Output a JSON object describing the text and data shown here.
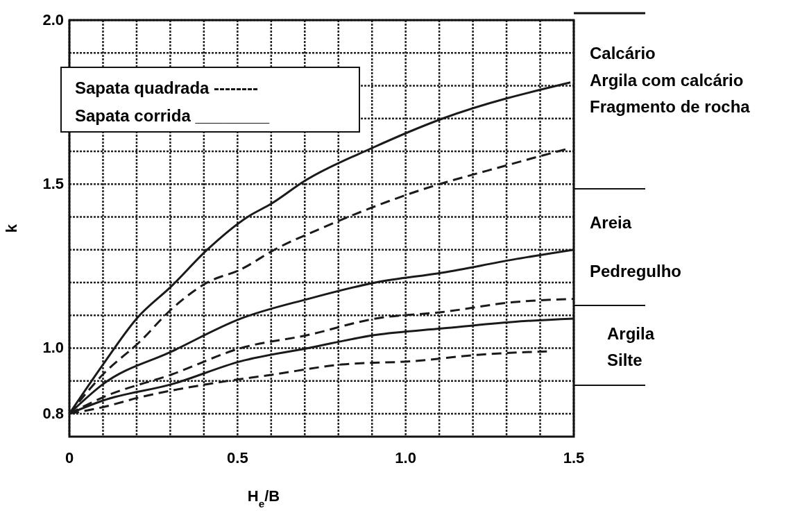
{
  "chart_data": {
    "type": "line",
    "xlabel": "H$_{e}$/B",
    "ylabel": "k",
    "xlim": [
      0,
      1.5
    ],
    "ylim": [
      0.73,
      2.0
    ],
    "xticks": [
      0,
      {
        "value": 0.1,
        "label": null
      },
      {
        "value": 0.2,
        "label": null
      },
      {
        "value": 0.3,
        "label": null
      },
      {
        "value": 0.4,
        "label": null
      },
      0.5,
      {
        "value": 0.6,
        "label": null
      },
      {
        "value": 0.7,
        "label": null
      },
      {
        "value": 0.8,
        "label": null
      },
      {
        "value": 0.9,
        "label": null
      },
      {
        "value": 1.0,
        "label": "1.0"
      },
      {
        "value": 1.1,
        "label": null
      },
      {
        "value": 1.2,
        "label": null
      },
      {
        "value": 1.3,
        "label": null
      },
      {
        "value": 1.4,
        "label": null
      },
      1.5
    ],
    "yticks": [
      0.8,
      {
        "value": 0.9,
        "label": null
      },
      {
        "value": 1.0,
        "label": "1.0"
      },
      {
        "value": 1.1,
        "label": null
      },
      {
        "value": 1.2,
        "label": null
      },
      {
        "value": 1.3,
        "label": null
      },
      {
        "value": 1.4,
        "label": null
      },
      1.5,
      {
        "value": 1.6,
        "label": null
      },
      {
        "value": 1.7,
        "label": null
      },
      {
        "value": 1.8,
        "label": null
      },
      {
        "value": 1.9,
        "label": null
      },
      {
        "value": 2.0,
        "label": "2.0"
      }
    ],
    "grid": true,
    "marker": "none",
    "series": [
      {
        "color": "#1a1a1a",
        "line_style": "solid",
        "x": [
          0,
          0.1,
          0.2,
          0.305,
          0.41,
          0.53,
          0.6,
          0.7,
          0.9,
          1.11,
          1.49
        ],
        "values": [
          0.8,
          0.95,
          1.09,
          1.19,
          1.3,
          1.4,
          1.44,
          1.51,
          1.61,
          1.7,
          1.81
        ]
      },
      {
        "color": "#1a1a1a",
        "line_style": "dashed",
        "x": [
          0,
          0.1,
          0.21,
          0.305,
          0.41,
          0.51,
          0.61,
          0.76,
          1.01,
          1.31,
          1.49
        ],
        "values": [
          0.8,
          0.92,
          1.02,
          1.12,
          1.2,
          1.24,
          1.3,
          1.37,
          1.47,
          1.56,
          1.61
        ]
      },
      {
        "color": "#1a1a1a",
        "line_style": "solid",
        "x": [
          0,
          0.1,
          0.305,
          0.51,
          0.71,
          0.91,
          1.11,
          1.32,
          1.5
        ],
        "values": [
          0.8,
          0.89,
          0.99,
          1.09,
          1.15,
          1.2,
          1.23,
          1.27,
          1.3
        ]
      },
      {
        "color": "#1a1a1a",
        "line_style": "dashed",
        "x": [
          0,
          0.1,
          0.305,
          0.51,
          0.71,
          0.91,
          1.11,
          1.32,
          1.5
        ],
        "values": [
          0.8,
          0.85,
          0.92,
          1.0,
          1.04,
          1.09,
          1.11,
          1.14,
          1.15
        ]
      },
      {
        "color": "#1a1a1a",
        "line_style": "solid",
        "x": [
          0,
          0.1,
          0.305,
          0.51,
          0.71,
          0.91,
          1.11,
          1.32,
          1.5
        ],
        "values": [
          0.8,
          0.84,
          0.89,
          0.96,
          1.0,
          1.04,
          1.06,
          1.08,
          1.09
        ]
      },
      {
        "color": "#1a1a1a",
        "line_style": "dashed",
        "x": [
          0,
          0.1,
          0.21,
          0.41,
          0.61,
          0.81,
          1.02,
          1.22,
          1.42
        ],
        "values": [
          0.8,
          0.82,
          0.85,
          0.89,
          0.92,
          0.95,
          0.96,
          0.98,
          0.99
        ]
      }
    ],
    "annotations": [
      "Sapata quadrada --------",
      "Sapata corrida ________",
      "Calcário",
      "Argila com calcário",
      "Fragmento de rocha",
      "Areia",
      "Pedregulho",
      "Argila",
      "Silte"
    ]
  }
}
